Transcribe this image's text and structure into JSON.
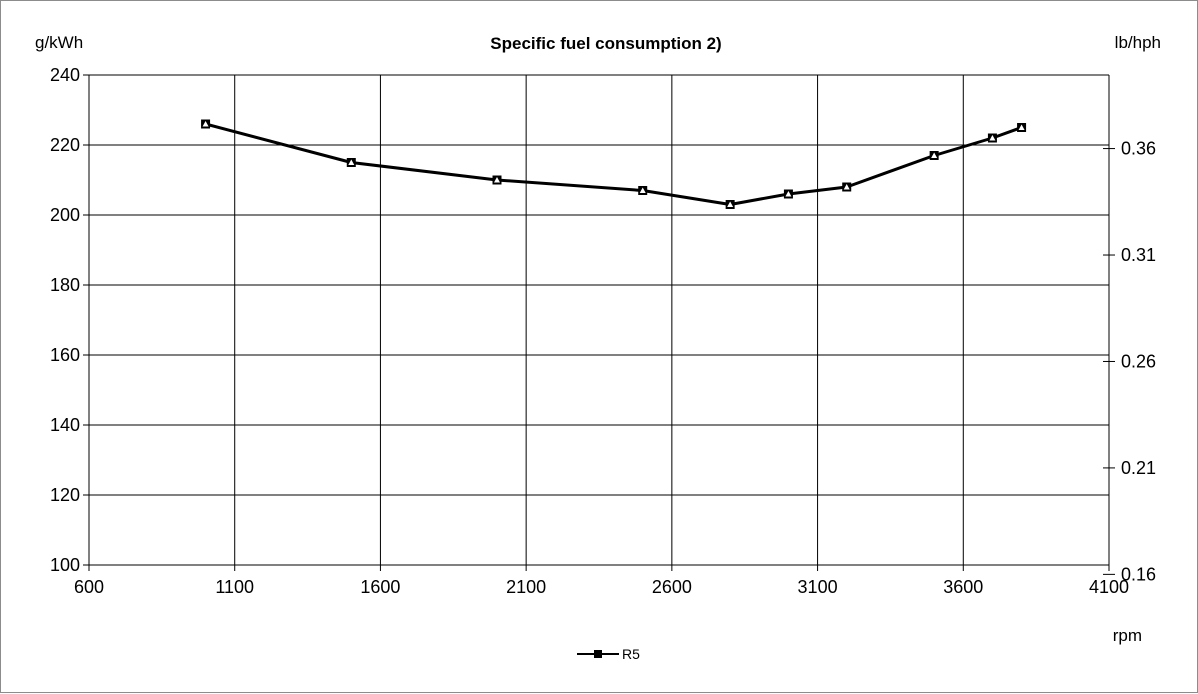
{
  "chart_data": {
    "type": "line",
    "title": "Specific fuel consumption 2)",
    "ylabel": "g/kWh",
    "y2label": "lb/hph",
    "xlabel": "rpm",
    "xlim": [
      600,
      4100
    ],
    "ylim": [
      100,
      240
    ],
    "x_ticks": [
      "600",
      "1100",
      "1600",
      "2100",
      "2600",
      "3100",
      "3600",
      "4100"
    ],
    "y_ticks": [
      "100",
      "120",
      "140",
      "160",
      "180",
      "200",
      "220",
      "240"
    ],
    "y2_ticks": [
      "0.16",
      "0.21",
      "0.26",
      "0.31",
      "0.36"
    ],
    "grid": true,
    "legend": "bottom-center",
    "series": [
      {
        "name": "R5",
        "color": "#000000",
        "x": [
          1000,
          1500,
          2000,
          2500,
          2800,
          3000,
          3200,
          3500,
          3700,
          3800
        ],
        "y": [
          226,
          215,
          210,
          207,
          203,
          206,
          208,
          217,
          222,
          225
        ]
      }
    ]
  }
}
